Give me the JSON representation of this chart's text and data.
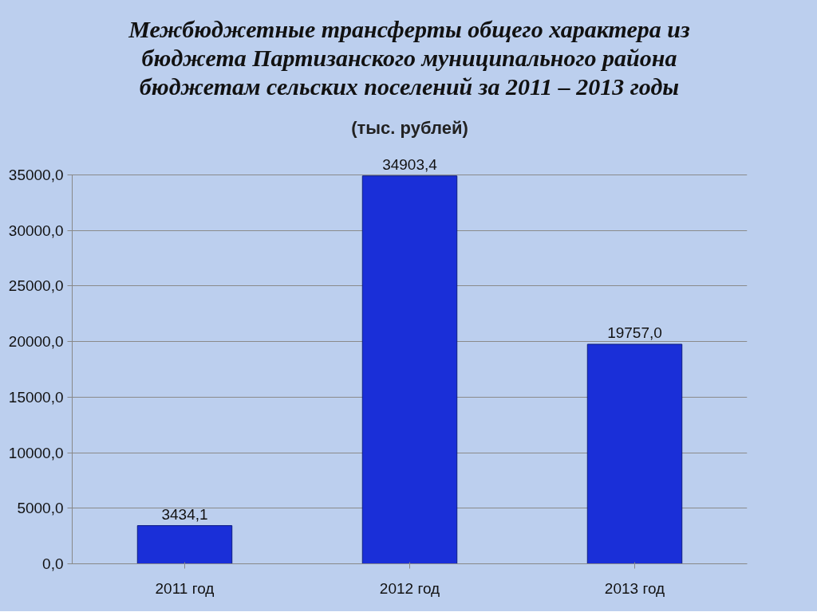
{
  "chart_data": {
    "type": "bar",
    "title": "Межбюджетные трансферты общего характера из бюджета Партизанского муниципального района бюджетам сельских поселений за 2011 – 2013 годы",
    "subtitle": "(тыс. рублей)",
    "categories": [
      "2011 год",
      "2012 год",
      "2013 год"
    ],
    "values": [
      3434.1,
      34903.4,
      19757.0
    ],
    "value_labels": [
      "3434,1",
      "34903,4",
      "19757,0"
    ],
    "color": "#1a2fd8",
    "ylim": [
      0,
      35000
    ],
    "yticks": [
      {
        "value": 0,
        "label": "0,0"
      },
      {
        "value": 5000,
        "label": "5000,0"
      },
      {
        "value": 10000,
        "label": "10000,0"
      },
      {
        "value": 15000,
        "label": "15000,0"
      },
      {
        "value": 20000,
        "label": "20000,0"
      },
      {
        "value": 25000,
        "label": "25000,0"
      },
      {
        "value": 30000,
        "label": "30000,0"
      },
      {
        "value": 35000,
        "label": "35000,0"
      }
    ],
    "grid": "y"
  }
}
